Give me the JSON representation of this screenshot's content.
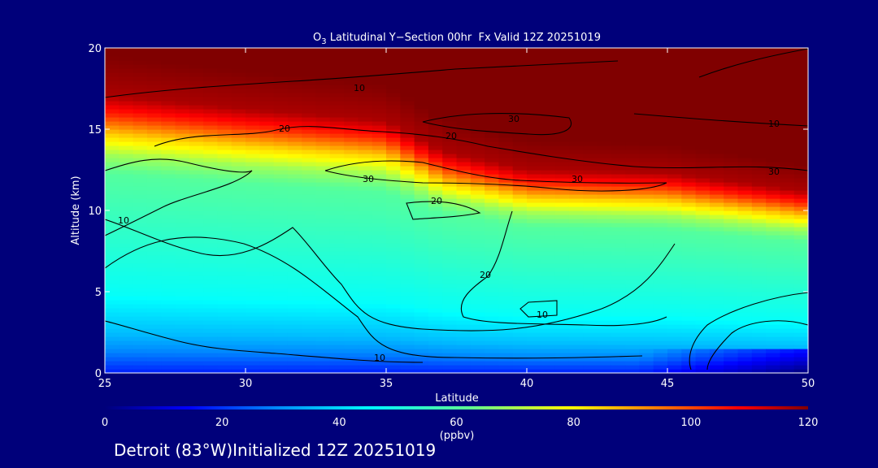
{
  "chart_data": {
    "type": "heatmap",
    "title": {
      "prefix": "O",
      "sub": "3",
      "rest": " Latitudinal Y−Section 00hr  Fx Valid 12Z 20251019"
    },
    "xlabel": "Latitude",
    "ylabel": "Altitude (km)",
    "xlim": [
      25,
      50
    ],
    "ylim": [
      0,
      20
    ],
    "x_ticks": [
      "25",
      "30",
      "35",
      "40",
      "45",
      "50"
    ],
    "y_ticks": [
      "0",
      "5",
      "10",
      "15",
      "20"
    ],
    "colorbar": {
      "range": [
        0,
        120
      ],
      "ticks": [
        "0",
        "20",
        "40",
        "60",
        "80",
        "100",
        "120"
      ],
      "unit": "(ppbv)",
      "colors": [
        "#00007a",
        "#0000ff",
        "#0090ff",
        "#00ffff",
        "#60ff90",
        "#ffff00",
        "#ff8000",
        "#ff0000",
        "#800000"
      ]
    },
    "contour_levels": [
      "10",
      "20",
      "30"
    ],
    "field_profile_note": "",
    "vertical_profile": [
      {
        "altitude": 0,
        "value": 18
      },
      {
        "altitude": 1,
        "value": 28
      },
      {
        "altitude": 2,
        "value": 36
      },
      {
        "altitude": 4,
        "value": 46
      },
      {
        "altitude": 6,
        "value": 50
      },
      {
        "altitude": 8,
        "value": 54
      },
      {
        "altitude": 10,
        "value": 58
      },
      {
        "altitude": 11,
        "value": 66
      },
      {
        "altitude": 12,
        "value": 80
      },
      {
        "altitude": 13,
        "value": 100
      },
      {
        "altitude": 14,
        "value": 115
      },
      {
        "altitude": 16,
        "value": 120
      },
      {
        "altitude": 20,
        "value": 120
      }
    ],
    "tropopause_km": [
      {
        "lat": 25,
        "value": 16.5
      },
      {
        "lat": 30,
        "value": 15.7
      },
      {
        "lat": 35,
        "value": 15.0
      },
      {
        "lat": 37,
        "value": 13.2
      },
      {
        "lat": 40,
        "value": 12.1
      },
      {
        "lat": 45,
        "value": 11.9
      },
      {
        "lat": 50,
        "value": 10.8
      }
    ]
  },
  "footer": "Detroit (83°W)Initialized 12Z 20251019"
}
